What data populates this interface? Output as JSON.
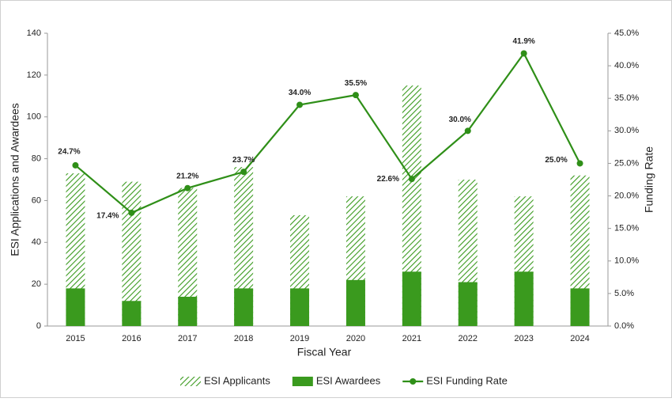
{
  "chart_data": {
    "type": "bar",
    "x_label": "Fiscal Year",
    "y_label": "ESI Applications and Awardees",
    "y2_label": "Funding Rate",
    "categories": [
      "2015",
      "2016",
      "2017",
      "2018",
      "2019",
      "2020",
      "2021",
      "2022",
      "2023",
      "2024"
    ],
    "series": [
      {
        "name": "ESI Applicants",
        "type": "bar",
        "pattern": "hatched",
        "color": "#3a9a1e",
        "values": [
          73,
          69,
          66,
          76,
          53,
          62,
          115,
          70,
          62,
          72
        ]
      },
      {
        "name": "ESI Awardees",
        "type": "bar",
        "color": "#3a9a1e",
        "values": [
          18,
          12,
          14,
          18,
          18,
          22,
          26,
          21,
          26,
          18
        ]
      },
      {
        "name": "ESI Funding Rate",
        "type": "line",
        "axis": "y2",
        "color": "#2f8f18",
        "values": [
          24.7,
          17.4,
          21.2,
          23.7,
          34.0,
          35.5,
          22.6,
          30.0,
          41.9,
          25.0
        ],
        "value_labels": [
          "24.7%",
          "17.4%",
          "21.2%",
          "23.7%",
          "34.0%",
          "35.5%",
          "22.6%",
          "30.0%",
          "41.9%",
          "25.0%"
        ]
      }
    ],
    "ylim": [
      0,
      140
    ],
    "yticks": [
      0,
      20,
      40,
      60,
      80,
      100,
      120,
      140
    ],
    "y2lim": [
      0,
      45
    ],
    "y2ticks": [
      {
        "value": 0,
        "label": "0.0%"
      },
      {
        "value": 5,
        "label": "5.0%"
      },
      {
        "value": 10,
        "label": "10.0%"
      },
      {
        "value": 15,
        "label": "15.0%"
      },
      {
        "value": 20,
        "label": "20.0%"
      },
      {
        "value": 25,
        "label": "25.0%"
      },
      {
        "value": 30,
        "label": "30.0%"
      },
      {
        "value": 35,
        "label": "35.0%"
      },
      {
        "value": 40,
        "label": "40.0%"
      },
      {
        "value": 45,
        "label": "45.0%"
      }
    ],
    "legend": "bottom"
  }
}
